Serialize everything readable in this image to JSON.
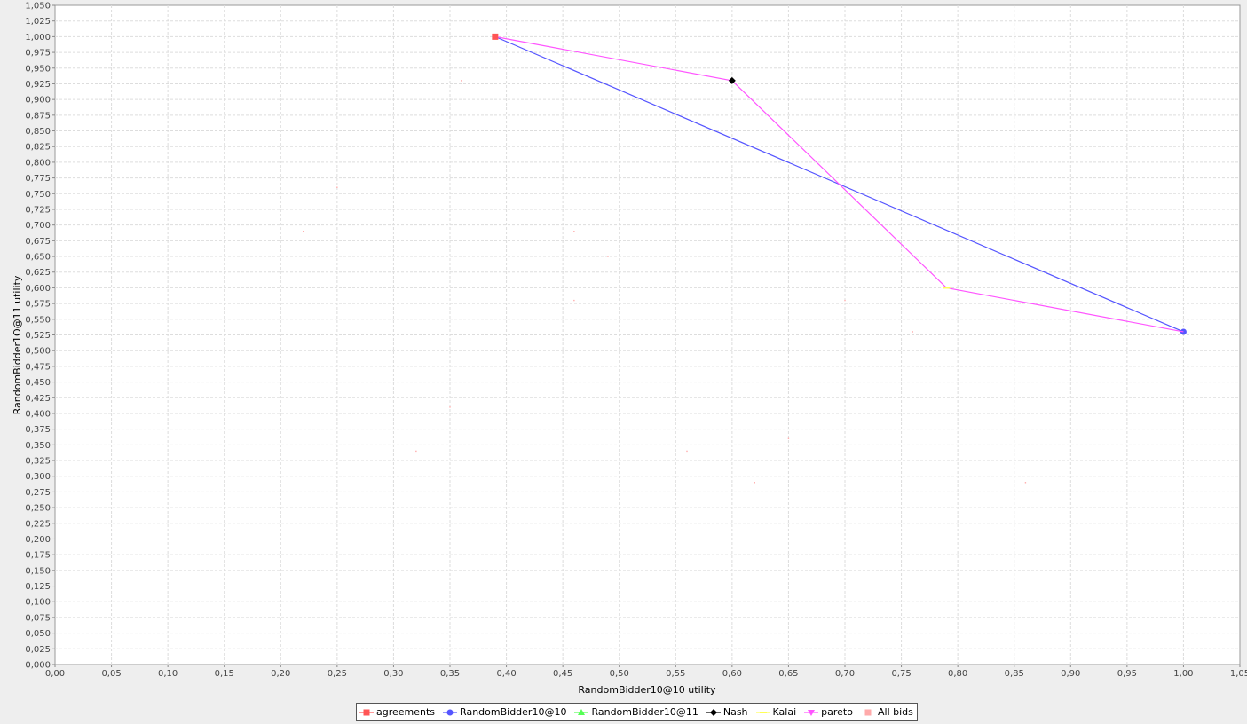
{
  "chart_data": {
    "type": "scatter",
    "xlabel": "RandomBidder10@10 utility",
    "ylabel": "RandomBidder1O@11 utility",
    "xlim": [
      0,
      1.05
    ],
    "ylim": [
      0,
      1.05
    ],
    "x_ticks": [
      "0,00",
      "0,05",
      "0,10",
      "0,15",
      "0,20",
      "0,25",
      "0,30",
      "0,35",
      "0,40",
      "0,45",
      "0,50",
      "0,55",
      "0,60",
      "0,65",
      "0,70",
      "0,75",
      "0,80",
      "0,85",
      "0,90",
      "0,95",
      "1,00",
      "1,05"
    ],
    "y_ticks": [
      "0,000",
      "0,025",
      "0,050",
      "0,075",
      "0,100",
      "0,125",
      "0,150",
      "0,175",
      "0,200",
      "0,225",
      "0,250",
      "0,275",
      "0,300",
      "0,325",
      "0,350",
      "0,375",
      "0,400",
      "0,425",
      "0,450",
      "0,475",
      "0,500",
      "0,525",
      "0,550",
      "0,575",
      "0,600",
      "0,625",
      "0,650",
      "0,675",
      "0,700",
      "0,725",
      "0,750",
      "0,775",
      "0,800",
      "0,825",
      "0,850",
      "0,875",
      "0,900",
      "0,925",
      "0,950",
      "0,975",
      "1,000",
      "1,025",
      "1,050"
    ],
    "grid": true,
    "legend_position": "bottom",
    "series": [
      {
        "name": "agreements",
        "color": "#ff5555",
        "marker": "square",
        "line": false,
        "x": [
          0.39
        ],
        "y": [
          1.0
        ]
      },
      {
        "name": "RandomBidder10@10",
        "color": "#5555ff",
        "marker": "circle",
        "line": true,
        "x": [
          0.39,
          1.0
        ],
        "y": [
          1.0,
          0.53
        ]
      },
      {
        "name": "RandomBidder10@11",
        "color": "#55ff55",
        "marker": "triangle-up",
        "line": true,
        "x": [],
        "y": []
      },
      {
        "name": "Nash",
        "color": "#000000",
        "marker": "diamond",
        "line": false,
        "x": [
          0.6
        ],
        "y": [
          0.93
        ]
      },
      {
        "name": "Kalai",
        "color": "#ffff55",
        "marker": "bar",
        "line": false,
        "x": [
          0.79
        ],
        "y": [
          0.6
        ]
      },
      {
        "name": "pareto",
        "color": "#ff55ff",
        "marker": "triangle-down",
        "line": true,
        "x": [
          0.39,
          0.6,
          0.79,
          1.0
        ],
        "y": [
          1.0,
          0.93,
          0.6,
          0.53
        ]
      },
      {
        "name": "All bids",
        "color": "#ffaaaa",
        "marker": "dot",
        "line": false,
        "x": [
          0.22,
          0.25,
          0.32,
          0.35,
          0.36,
          0.46,
          0.46,
          0.49,
          0.56,
          0.62,
          0.65,
          0.7,
          0.76,
          0.86
        ],
        "y": [
          0.69,
          0.76,
          0.34,
          0.41,
          0.93,
          0.69,
          0.58,
          0.65,
          0.34,
          0.29,
          0.36,
          0.58,
          0.53,
          0.29
        ]
      }
    ]
  }
}
